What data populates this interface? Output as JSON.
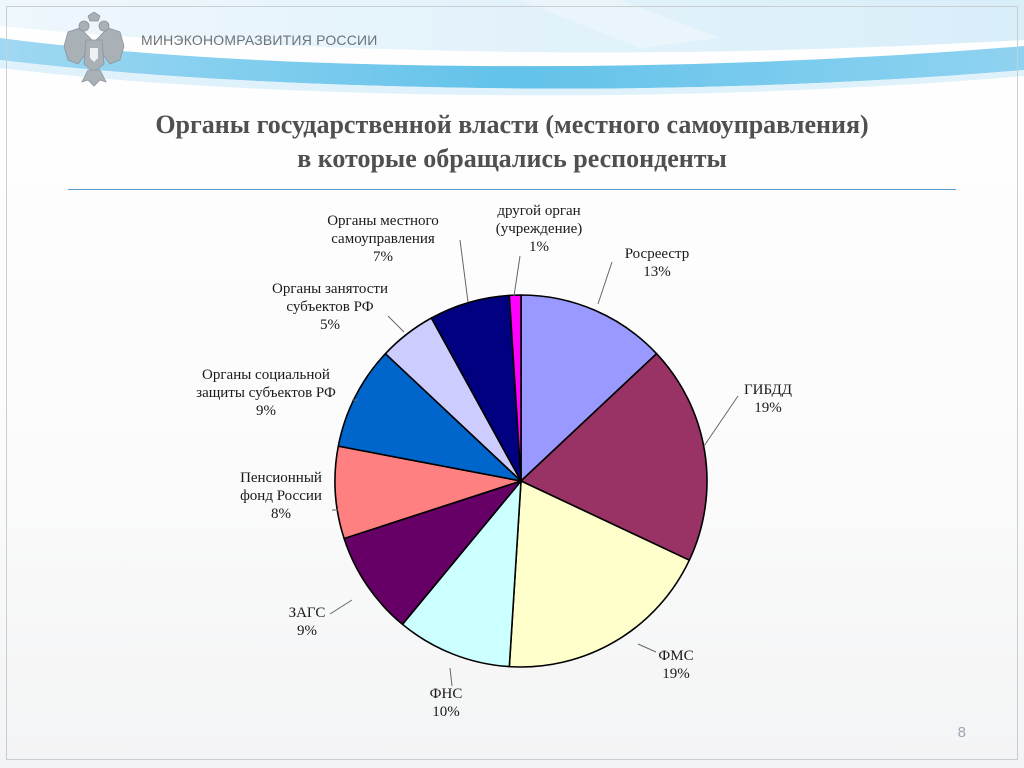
{
  "header": {
    "ministry": "МИНЭКОНОМРАЗВИТИЯ РОССИИ",
    "emblem_icon": "russian-double-headed-eagle-icon"
  },
  "title": {
    "line1": "Органы государственной власти (местного самоуправления)",
    "line2": "в которые обращались респонденты"
  },
  "page_number": "8",
  "chart_data": {
    "type": "pie",
    "title": "",
    "slices": [
      {
        "label": "Росреестр",
        "value": 13,
        "value_label": "13%",
        "color": "#9999ff"
      },
      {
        "label": "ГИБДД",
        "value": 19,
        "value_label": "19%",
        "color": "#993366"
      },
      {
        "label": "ФМС",
        "value": 19,
        "value_label": "19%",
        "color": "#ffffcc"
      },
      {
        "label": "ФНС",
        "value": 10,
        "value_label": "10%",
        "color": "#ccffff"
      },
      {
        "label": "ЗАГС",
        "value": 9,
        "value_label": "9%",
        "color": "#660066"
      },
      {
        "label": "Пенсионный фонд России",
        "value": 8,
        "value_label": "8%",
        "color": "#ff8080"
      },
      {
        "label": "Органы социальной защиты субъектов РФ",
        "value": 9,
        "value_label": "9%",
        "color": "#0066cc"
      },
      {
        "label": "Органы занятости субъектов РФ",
        "value": 5,
        "value_label": "5%",
        "color": "#ccccff"
      },
      {
        "label": "Органы местного самоуправления",
        "value": 7,
        "value_label": "7%",
        "color": "#000080"
      },
      {
        "label": "другой орган (учреждение)",
        "value": 1,
        "value_label": "1%",
        "color": "#ff00ff"
      }
    ]
  }
}
